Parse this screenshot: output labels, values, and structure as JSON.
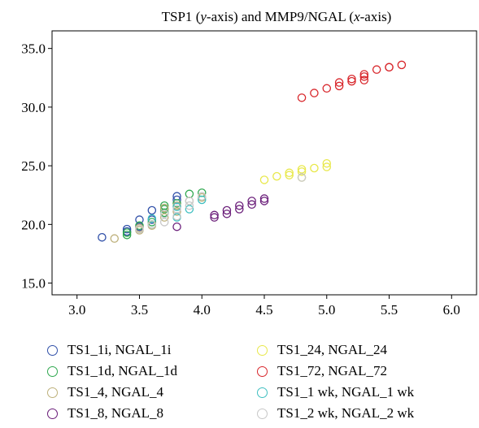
{
  "chart_data": {
    "type": "scatter",
    "title": "TSP1 (y-axis) and MMP9/NGAL (x-axis)",
    "xlabel": "",
    "ylabel": "",
    "xlim": [
      2.8,
      6.2
    ],
    "ylim": [
      14.0,
      36.5
    ],
    "xticks": [
      3.0,
      3.5,
      4.0,
      4.5,
      5.0,
      5.5,
      6.0
    ],
    "yticks": [
      15.0,
      20.0,
      25.0,
      30.0,
      35.0
    ],
    "xtick_labels": [
      "3.0",
      "3.5",
      "4.0",
      "4.5",
      "5.0",
      "5.5",
      "6.0"
    ],
    "ytick_labels": [
      "15.0",
      "20.0",
      "25.0",
      "30.0",
      "35.0"
    ],
    "grid": false,
    "legend_position": "bottom",
    "marker": "open-circle",
    "series": [
      {
        "name": "TS1_1i, NGAL_1i",
        "color": "#2f4fa8",
        "x": [
          3.2,
          3.4,
          3.4,
          3.5,
          3.5,
          3.6,
          3.6,
          3.8,
          3.8
        ],
        "y": [
          18.9,
          19.6,
          19.4,
          19.8,
          20.4,
          21.2,
          20.4,
          22.1,
          22.4
        ]
      },
      {
        "name": "TS1_1d, NGAL_1d",
        "color": "#2fa84f",
        "x": [
          3.4,
          3.4,
          3.5,
          3.6,
          3.6,
          3.7,
          3.7,
          3.7,
          3.8,
          3.9,
          4.0
        ],
        "y": [
          19.1,
          19.3,
          19.9,
          20.2,
          20.0,
          21.3,
          21.6,
          21.0,
          21.8,
          22.6,
          22.7
        ]
      },
      {
        "name": "TS1_4, NGAL_4",
        "color": "#bdb07a",
        "x": [
          3.3,
          3.5,
          3.5,
          3.6,
          3.7,
          3.7,
          3.8,
          3.8,
          3.9,
          4.0
        ],
        "y": [
          18.8,
          19.5,
          19.7,
          19.9,
          20.6,
          21.4,
          21.6,
          21.1,
          22.0,
          22.3
        ]
      },
      {
        "name": "TS1_8, NGAL_8",
        "color": "#6b1f7a",
        "x": [
          3.8,
          4.1,
          4.1,
          4.2,
          4.2,
          4.3,
          4.3,
          4.4,
          4.4,
          4.5,
          4.5
        ],
        "y": [
          19.8,
          20.6,
          20.8,
          20.9,
          21.2,
          21.3,
          21.6,
          21.7,
          22.0,
          22.0,
          22.2
        ]
      },
      {
        "name": "TS1_24, NGAL_24",
        "color": "#e8e84a",
        "x": [
          4.5,
          4.6,
          4.7,
          4.7,
          4.8,
          4.8,
          4.8,
          4.9,
          5.0,
          5.0
        ],
        "y": [
          23.8,
          24.1,
          24.2,
          24.4,
          24.0,
          24.5,
          24.7,
          24.8,
          24.9,
          25.2
        ]
      },
      {
        "name": "TS1_72, NGAL_72",
        "color": "#d8262b",
        "x": [
          4.8,
          4.9,
          5.0,
          5.1,
          5.1,
          5.2,
          5.2,
          5.3,
          5.3,
          5.3,
          5.4,
          5.5,
          5.5,
          5.6
        ],
        "y": [
          30.8,
          31.2,
          31.6,
          31.8,
          32.1,
          32.2,
          32.4,
          32.3,
          32.6,
          32.8,
          33.2,
          33.4,
          33.4,
          33.6
        ]
      },
      {
        "name": "TS1_1 wk, NGAL_1 wk",
        "color": "#3fbfc0",
        "x": [
          3.6,
          3.7,
          3.8,
          3.8,
          3.9,
          4.0
        ],
        "y": [
          20.5,
          20.9,
          21.5,
          20.6,
          21.3,
          22.1
        ]
      },
      {
        "name": "TS1_2 wk, NGAL_2 wk",
        "color": "#c8c8c8",
        "x": [
          3.5,
          3.6,
          3.7,
          3.7,
          3.8,
          3.8,
          3.9,
          3.9,
          4.0,
          4.8
        ],
        "y": [
          19.6,
          20.0,
          20.2,
          20.9,
          20.7,
          21.3,
          21.6,
          22.0,
          22.4,
          24.0
        ]
      }
    ]
  }
}
